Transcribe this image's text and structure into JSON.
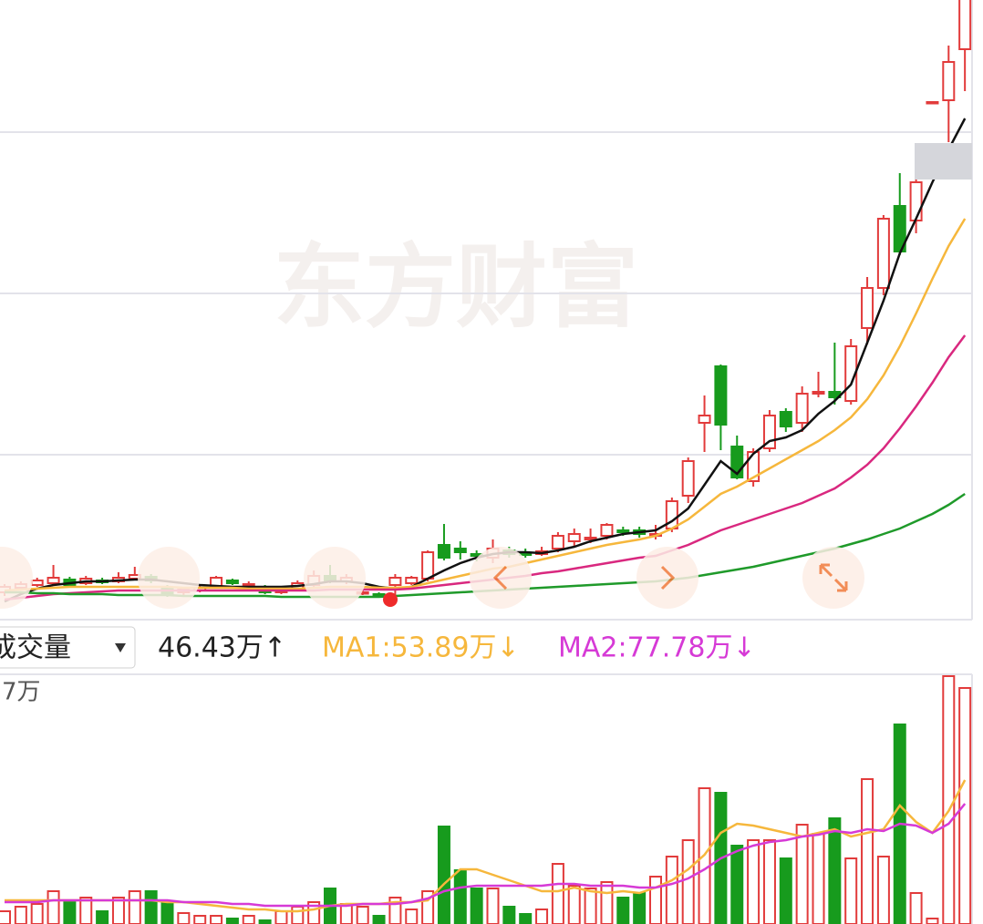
{
  "chart_data": [
    {
      "type": "candlestick",
      "watermark": "东方财富",
      "up_color": "#e23b3b",
      "down_color": "#179b1d",
      "ylim": [
        0,
        68
      ],
      "open": [
        3.0,
        3.5,
        3.8,
        4.0,
        4.4,
        4.0,
        4.3,
        4.2,
        4.5,
        4.7,
        3.5,
        3.0,
        3.2,
        3.6,
        4.3,
        3.8,
        3.6,
        3.0,
        3.3,
        3.8,
        4.8,
        4.2,
        3.0,
        2.8,
        3.8,
        4.0,
        4.5,
        8.2,
        7.8,
        7.2,
        6.8,
        7.6,
        7.3,
        7.2,
        7.8,
        8.6,
        8.8,
        9.2,
        9.8,
        9.8,
        9.2,
        10.0,
        13.6,
        21.6,
        27.8,
        19.0,
        15.2,
        18.8,
        22.8,
        21.6,
        24.8,
        25.0,
        24.0,
        32.0,
        36.4,
        45.4,
        43.8,
        56.8,
        57.0,
        62.6
      ],
      "close": [
        3.6,
        3.9,
        4.3,
        4.6,
        3.8,
        4.5,
        4.1,
        4.6,
        4.9,
        4.3,
        2.8,
        3.3,
        3.5,
        4.6,
        4.0,
        3.9,
        3.0,
        3.4,
        4.0,
        4.8,
        4.2,
        4.6,
        3.0,
        2.6,
        4.6,
        4.6,
        7.4,
        6.8,
        7.4,
        7.0,
        7.8,
        7.2,
        7.1,
        7.5,
        9.2,
        9.4,
        9.0,
        10.4,
        9.6,
        9.4,
        9.4,
        13.0,
        17.4,
        22.4,
        21.4,
        15.6,
        18.4,
        22.4,
        21.2,
        24.8,
        25.0,
        24.4,
        30.0,
        36.4,
        44.0,
        40.4,
        48.0,
        56.8,
        61.2,
        69.0
      ],
      "high": [
        3.9,
        4.2,
        4.6,
        6.0,
        4.7,
        4.8,
        4.6,
        5.2,
        5.8,
        5.0,
        3.8,
        3.6,
        3.8,
        4.8,
        4.5,
        4.2,
        3.8,
        3.6,
        4.3,
        5.4,
        6.0,
        5.0,
        3.4,
        3.0,
        5.0,
        4.8,
        7.6,
        10.5,
        8.6,
        7.6,
        8.8,
        8.0,
        7.8,
        8.0,
        9.6,
        10.0,
        10.0,
        10.6,
        10.2,
        10.2,
        10.4,
        13.4,
        17.8,
        24.6,
        28.0,
        20.2,
        18.8,
        23.0,
        23.2,
        25.6,
        27.2,
        30.4,
        30.8,
        37.6,
        44.4,
        49.0,
        48.4,
        56.8,
        63.0,
        69.0
      ],
      "low": [
        2.6,
        3.2,
        3.6,
        3.8,
        3.5,
        3.8,
        3.9,
        4.0,
        4.3,
        4.0,
        2.5,
        2.6,
        3.0,
        3.4,
        3.8,
        3.6,
        2.8,
        2.8,
        3.1,
        3.6,
        4.0,
        3.9,
        2.7,
        2.4,
        2.6,
        3.8,
        4.2,
        6.5,
        6.6,
        6.4,
        6.2,
        6.8,
        6.8,
        7.0,
        7.4,
        8.0,
        8.4,
        8.8,
        9.2,
        9.0,
        8.8,
        9.6,
        12.8,
        18.4,
        18.6,
        15.4,
        14.6,
        18.4,
        20.6,
        20.6,
        24.4,
        23.6,
        23.6,
        30.2,
        35.6,
        40.0,
        42.4,
        56.8,
        52.4,
        58.0
      ],
      "lines": [
        {
          "color": "#111111",
          "values": [
            2.0,
            2.8,
            3.4,
            3.8,
            4.0,
            4.2,
            4.2,
            4.3,
            4.4,
            4.4,
            4.2,
            4.0,
            3.8,
            3.7,
            3.6,
            3.6,
            3.6,
            3.6,
            3.7,
            3.9,
            4.2,
            4.2,
            4.0,
            3.6,
            3.4,
            3.6,
            4.5,
            5.4,
            6.2,
            6.8,
            7.2,
            7.4,
            7.4,
            7.3,
            7.6,
            8.0,
            8.6,
            9.0,
            9.4,
            9.6,
            9.8,
            10.8,
            12.2,
            14.8,
            17.4,
            16.0,
            18.2,
            19.6,
            20.0,
            20.8,
            22.6,
            24.0,
            25.8,
            30.4,
            35.0,
            40.2,
            44.0,
            48.0,
            51.6,
            55.0
          ]
        },
        {
          "color": "#f6b73c",
          "values": [
            3.2,
            3.3,
            3.4,
            3.5,
            3.6,
            3.6,
            3.6,
            3.6,
            3.6,
            3.6,
            3.6,
            3.5,
            3.5,
            3.5,
            3.5,
            3.4,
            3.4,
            3.4,
            3.4,
            3.5,
            3.6,
            3.6,
            3.6,
            3.5,
            3.5,
            3.6,
            4.0,
            4.4,
            4.8,
            5.2,
            5.6,
            5.8,
            6.2,
            6.6,
            7.0,
            7.4,
            7.8,
            8.2,
            8.5,
            8.8,
            9.2,
            10.0,
            11.0,
            12.4,
            13.8,
            14.6,
            15.6,
            16.6,
            17.6,
            18.6,
            19.6,
            20.8,
            22.2,
            24.2,
            26.8,
            30.0,
            33.6,
            37.4,
            41.0,
            44.0
          ]
        },
        {
          "color": "#d9287f",
          "values": [
            2.2,
            2.4,
            2.6,
            2.8,
            2.9,
            3.0,
            3.1,
            3.2,
            3.2,
            3.2,
            3.2,
            3.2,
            3.2,
            3.2,
            3.2,
            3.2,
            3.2,
            3.2,
            3.2,
            3.2,
            3.3,
            3.3,
            3.3,
            3.3,
            3.3,
            3.4,
            3.6,
            3.8,
            4.0,
            4.2,
            4.4,
            4.6,
            4.8,
            5.1,
            5.3,
            5.6,
            5.9,
            6.2,
            6.5,
            6.8,
            7.0,
            7.6,
            8.2,
            9.0,
            9.8,
            10.4,
            11.0,
            11.6,
            12.2,
            12.8,
            13.6,
            14.4,
            15.6,
            17.0,
            18.8,
            21.0,
            23.4,
            26.0,
            28.8,
            31.2
          ]
        },
        {
          "color": "#1f9a2a",
          "values": [
            3.0,
            3.0,
            2.9,
            2.9,
            2.8,
            2.8,
            2.8,
            2.7,
            2.7,
            2.7,
            2.7,
            2.6,
            2.6,
            2.6,
            2.6,
            2.6,
            2.6,
            2.5,
            2.5,
            2.5,
            2.5,
            2.5,
            2.5,
            2.5,
            2.6,
            2.7,
            2.8,
            2.9,
            3.0,
            3.1,
            3.2,
            3.3,
            3.4,
            3.5,
            3.6,
            3.7,
            3.8,
            3.9,
            4.0,
            4.1,
            4.2,
            4.4,
            4.6,
            4.9,
            5.2,
            5.5,
            5.8,
            6.2,
            6.6,
            7.0,
            7.4,
            7.8,
            8.3,
            8.8,
            9.4,
            10.0,
            10.8,
            11.6,
            12.6,
            13.8
          ]
        }
      ]
    },
    {
      "type": "bar",
      "indicator": "成交量",
      "current": "46.43万↑",
      "ma1_label": "MA1:53.89万↓",
      "ma2_label": "MA2:77.78万↓",
      "axis_top": "7万",
      "ylim": [
        0,
        137
      ],
      "values": [
        7,
        9.5,
        11,
        18,
        12,
        14.5,
        7,
        14.5,
        18,
        18,
        12,
        6,
        4.5,
        4.5,
        3,
        4.5,
        2,
        7,
        9.5,
        12,
        19.5,
        11,
        9.5,
        4.5,
        14.5,
        8,
        18,
        53.5,
        29.5,
        19.5,
        19.5,
        9.5,
        5.5,
        8,
        33,
        21,
        19.5,
        23,
        14.5,
        17,
        26,
        37,
        46,
        74.5,
        72,
        43,
        46,
        46,
        36,
        54.5,
        49.5,
        58,
        36,
        79.5,
        37,
        109.5,
        17,
        3,
        136,
        129.5
      ],
      "lines": [
        {
          "color": "#f6b73c",
          "values": [
            13,
            13,
            13,
            13,
            13,
            13,
            13,
            13,
            13,
            13,
            12,
            12,
            11,
            10,
            9,
            8,
            8,
            7,
            7,
            8,
            10,
            11,
            11,
            11,
            12,
            12,
            13,
            22,
            30,
            30,
            27,
            24,
            21,
            18,
            18,
            20,
            18,
            17,
            18,
            17,
            20,
            24,
            30,
            38,
            50,
            55,
            54,
            52,
            50,
            48,
            50,
            52,
            48,
            50,
            52,
            65,
            56,
            50,
            62,
            79
          ]
        },
        {
          "color": "#d63ad6",
          "values": [
            12,
            12,
            12,
            13,
            13,
            13,
            13,
            13,
            13,
            13,
            13,
            12,
            12,
            12,
            11,
            11,
            10,
            10,
            10,
            10,
            10,
            10,
            11,
            11,
            11,
            12,
            14,
            18,
            20,
            21,
            21,
            21,
            21,
            21,
            22,
            22,
            21,
            21,
            21,
            20,
            20,
            22,
            25,
            30,
            36,
            40,
            43,
            45,
            46,
            48,
            49,
            51,
            50,
            52,
            51,
            55,
            54,
            50,
            55,
            66
          ]
        }
      ]
    }
  ]
}
